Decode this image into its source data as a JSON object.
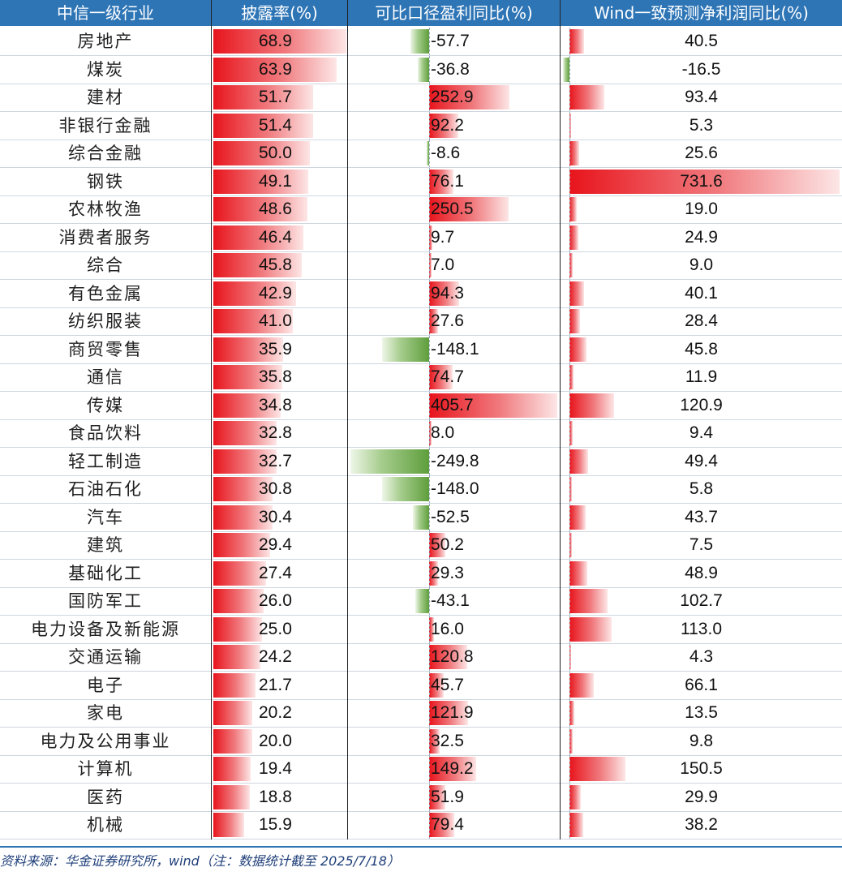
{
  "headers": [
    "中信一级行业",
    "披露率(%)",
    "可比口径盈利同比(%)",
    "Wind一致预测净利润同比(%)"
  ],
  "colors": {
    "header_bg": "#2e75b6",
    "positive_bar": "#e8141c",
    "negative_bar": "#5e9e3c",
    "source_text": "#1f3f7a"
  },
  "source": "资料来源：华金证券研究所，wind（注：数据统计截至 2025/7/18）",
  "chart_data": {
    "type": "table",
    "columns": [
      "中信一级行业",
      "披露率(%)",
      "可比口径盈利同比(%)",
      "Wind一致预测净利润同比(%)"
    ],
    "rows": [
      {
        "industry": "房地产",
        "disclosure_rate": "68.9",
        "comparable_yoy": "-57.7",
        "wind_yoy": "40.5"
      },
      {
        "industry": "煤炭",
        "disclosure_rate": "63.9",
        "comparable_yoy": "-36.8",
        "wind_yoy": "-16.5"
      },
      {
        "industry": "建材",
        "disclosure_rate": "51.7",
        "comparable_yoy": "252.9",
        "wind_yoy": "93.4"
      },
      {
        "industry": "非银行金融",
        "disclosure_rate": "51.4",
        "comparable_yoy": "92.2",
        "wind_yoy": "5.3"
      },
      {
        "industry": "综合金融",
        "disclosure_rate": "50.0",
        "comparable_yoy": "-8.6",
        "wind_yoy": "25.6"
      },
      {
        "industry": "钢铁",
        "disclosure_rate": "49.1",
        "comparable_yoy": "76.1",
        "wind_yoy": "731.6"
      },
      {
        "industry": "农林牧渔",
        "disclosure_rate": "48.6",
        "comparable_yoy": "250.5",
        "wind_yoy": "19.0"
      },
      {
        "industry": "消费者服务",
        "disclosure_rate": "46.4",
        "comparable_yoy": "9.7",
        "wind_yoy": "24.9"
      },
      {
        "industry": "综合",
        "disclosure_rate": "45.8",
        "comparable_yoy": "7.0",
        "wind_yoy": "9.0"
      },
      {
        "industry": "有色金属",
        "disclosure_rate": "42.9",
        "comparable_yoy": "94.3",
        "wind_yoy": "40.1"
      },
      {
        "industry": "纺织服装",
        "disclosure_rate": "41.0",
        "comparable_yoy": "27.6",
        "wind_yoy": "28.4"
      },
      {
        "industry": "商贸零售",
        "disclosure_rate": "35.9",
        "comparable_yoy": "-148.1",
        "wind_yoy": "45.8"
      },
      {
        "industry": "通信",
        "disclosure_rate": "35.8",
        "comparable_yoy": "74.7",
        "wind_yoy": "11.9"
      },
      {
        "industry": "传媒",
        "disclosure_rate": "34.8",
        "comparable_yoy": "405.7",
        "wind_yoy": "120.9"
      },
      {
        "industry": "食品饮料",
        "disclosure_rate": "32.8",
        "comparable_yoy": "8.0",
        "wind_yoy": "9.4"
      },
      {
        "industry": "轻工制造",
        "disclosure_rate": "32.7",
        "comparable_yoy": "-249.8",
        "wind_yoy": "49.4"
      },
      {
        "industry": "石油石化",
        "disclosure_rate": "30.8",
        "comparable_yoy": "-148.0",
        "wind_yoy": "5.8"
      },
      {
        "industry": "汽车",
        "disclosure_rate": "30.4",
        "comparable_yoy": "-52.5",
        "wind_yoy": "43.7"
      },
      {
        "industry": "建筑",
        "disclosure_rate": "29.4",
        "comparable_yoy": "50.2",
        "wind_yoy": "7.5"
      },
      {
        "industry": "基础化工",
        "disclosure_rate": "27.4",
        "comparable_yoy": "29.3",
        "wind_yoy": "48.9"
      },
      {
        "industry": "国防军工",
        "disclosure_rate": "26.0",
        "comparable_yoy": "-43.1",
        "wind_yoy": "102.7"
      },
      {
        "industry": "电力设备及新能源",
        "disclosure_rate": "25.0",
        "comparable_yoy": "16.0",
        "wind_yoy": "113.0"
      },
      {
        "industry": "交通运输",
        "disclosure_rate": "24.2",
        "comparable_yoy": "120.8",
        "wind_yoy": "4.3"
      },
      {
        "industry": "电子",
        "disclosure_rate": "21.7",
        "comparable_yoy": "45.7",
        "wind_yoy": "66.1"
      },
      {
        "industry": "家电",
        "disclosure_rate": "20.2",
        "comparable_yoy": "121.9",
        "wind_yoy": "13.5"
      },
      {
        "industry": "电力及公用事业",
        "disclosure_rate": "20.0",
        "comparable_yoy": "32.5",
        "wind_yoy": "9.8"
      },
      {
        "industry": "计算机",
        "disclosure_rate": "19.4",
        "comparable_yoy": "149.2",
        "wind_yoy": "150.5"
      },
      {
        "industry": "医药",
        "disclosure_rate": "18.8",
        "comparable_yoy": "51.9",
        "wind_yoy": "29.9"
      },
      {
        "industry": "机械",
        "disclosure_rate": "15.9",
        "comparable_yoy": "79.4",
        "wind_yoy": "38.2"
      }
    ]
  }
}
